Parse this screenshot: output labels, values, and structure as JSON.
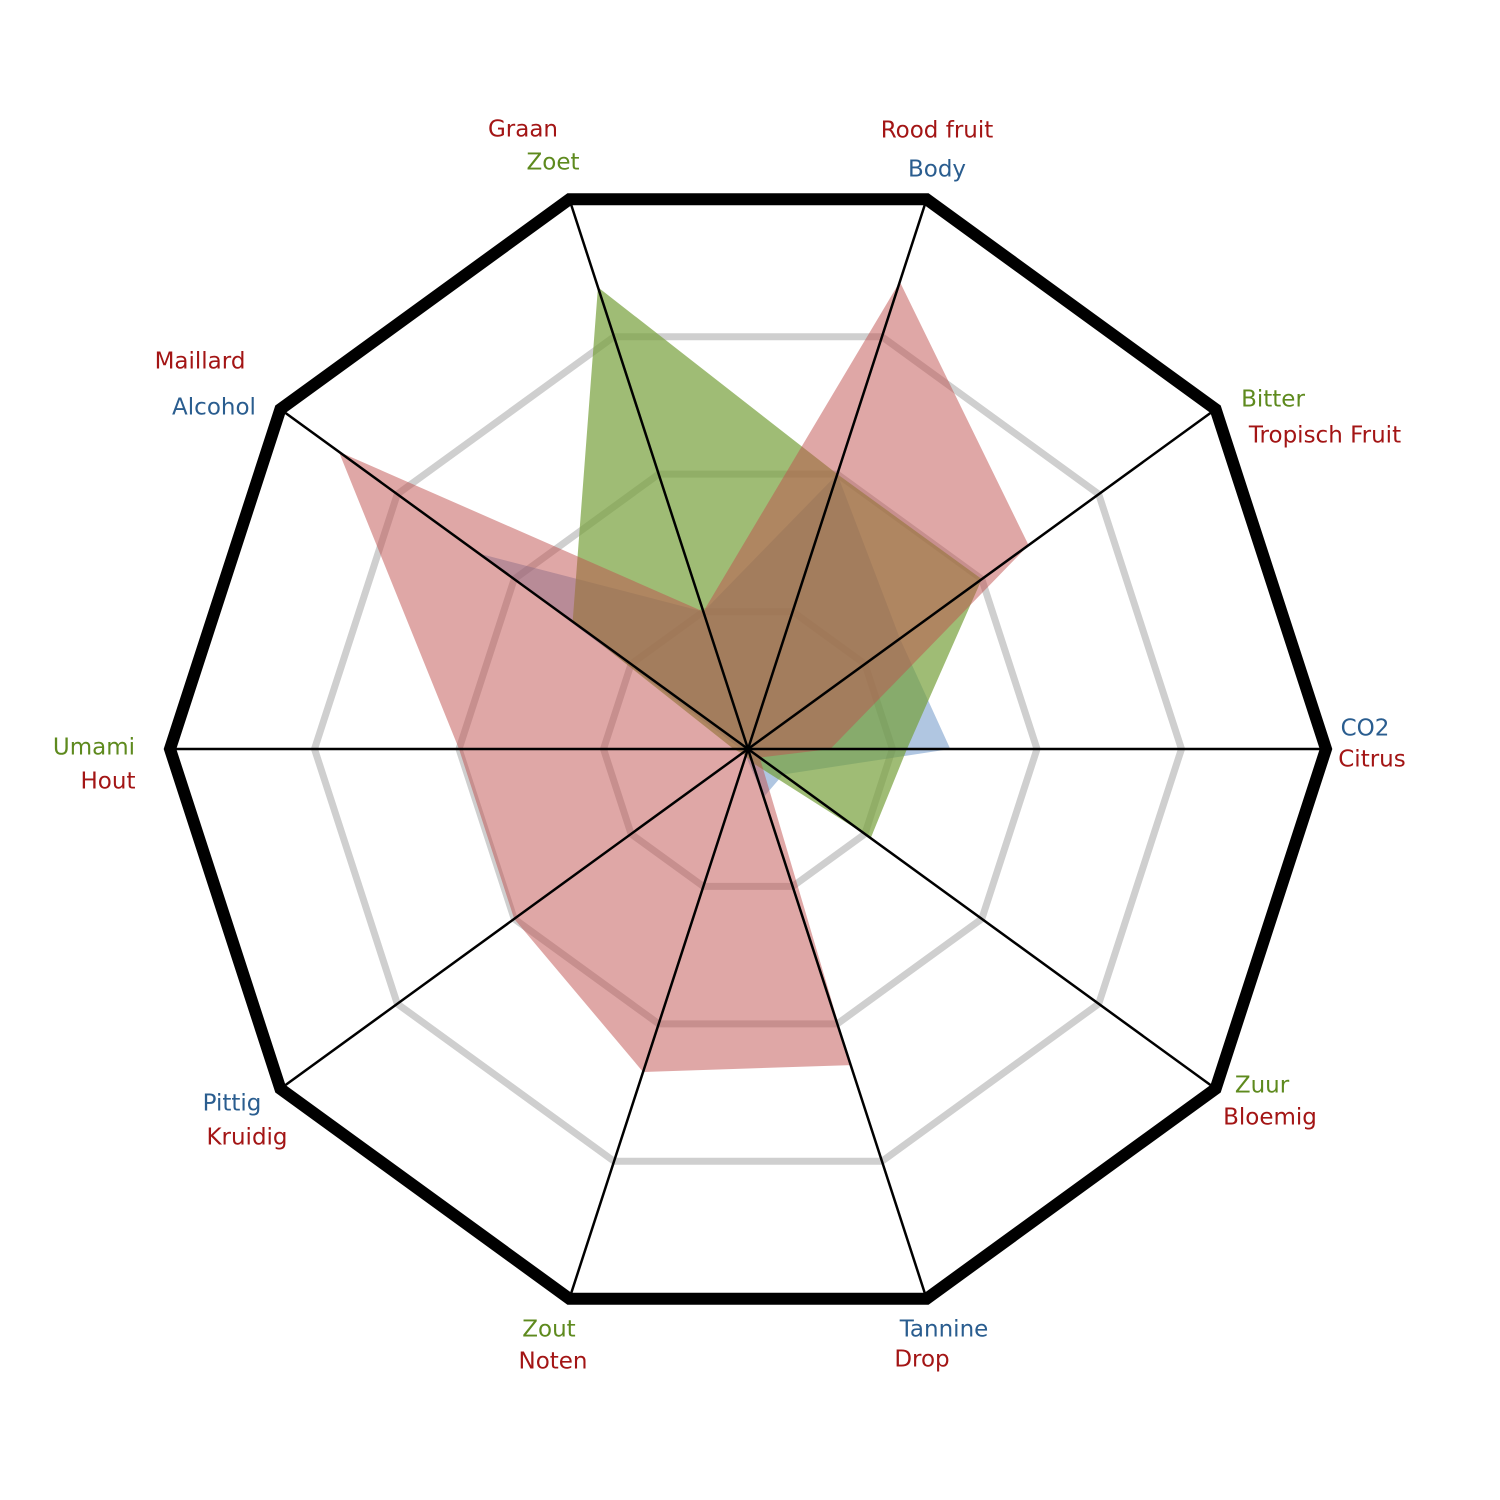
{
  "chart_data": {
    "type": "radar",
    "rlim": [
      0,
      4
    ],
    "rticks": [
      1,
      2,
      3
    ],
    "axes": [
      {
        "aroma": "Rood fruit",
        "taste": "Body",
        "taste_color": "#2a5d8f"
      },
      {
        "aroma": "Tropisch Fruit",
        "taste": "Bitter",
        "taste_color": "#5e8a1e"
      },
      {
        "aroma": "Citrus",
        "taste": "CO2",
        "taste_color": "#2a5d8f"
      },
      {
        "aroma": "Bloemig",
        "taste": "Zuur",
        "taste_color": "#5e8a1e"
      },
      {
        "aroma": "Drop",
        "taste": "Tannine",
        "taste_color": "#2a5d8f"
      },
      {
        "aroma": "Noten",
        "taste": "Zout",
        "taste_color": "#5e8a1e"
      },
      {
        "aroma": "Kruidig",
        "taste": "Pittig",
        "taste_color": "#2a5d8f"
      },
      {
        "aroma": "Hout",
        "taste": "Umami",
        "taste_color": "#5e8a1e"
      },
      {
        "aroma": "Maillard",
        "taste": "Alcohol",
        "taste_color": "#2a5d8f"
      },
      {
        "aroma": "Graan",
        "taste": "Zoet",
        "taste_color": "#5e8a1e"
      }
    ],
    "aroma_color": "#a31515",
    "series": [
      {
        "color": "#4f81bd",
        "opacity": 0.45,
        "values": [
          2.0,
          1.3,
          1.4,
          0.3,
          0.35,
          0.05,
          0.05,
          0.05,
          2.3,
          1.0
        ]
      },
      {
        "color": "#76a03a",
        "opacity": 0.7,
        "values": [
          2.0,
          2.0,
          1.1,
          1.05,
          0.1,
          0.05,
          0.05,
          0.1,
          1.5,
          3.36
        ]
      },
      {
        "color": "#c0504d",
        "opacity": 0.5,
        "values": [
          3.4,
          2.4,
          0.57,
          0.1,
          2.3,
          2.35,
          2.0,
          2.0,
          3.5,
          1.0
        ]
      }
    ]
  }
}
